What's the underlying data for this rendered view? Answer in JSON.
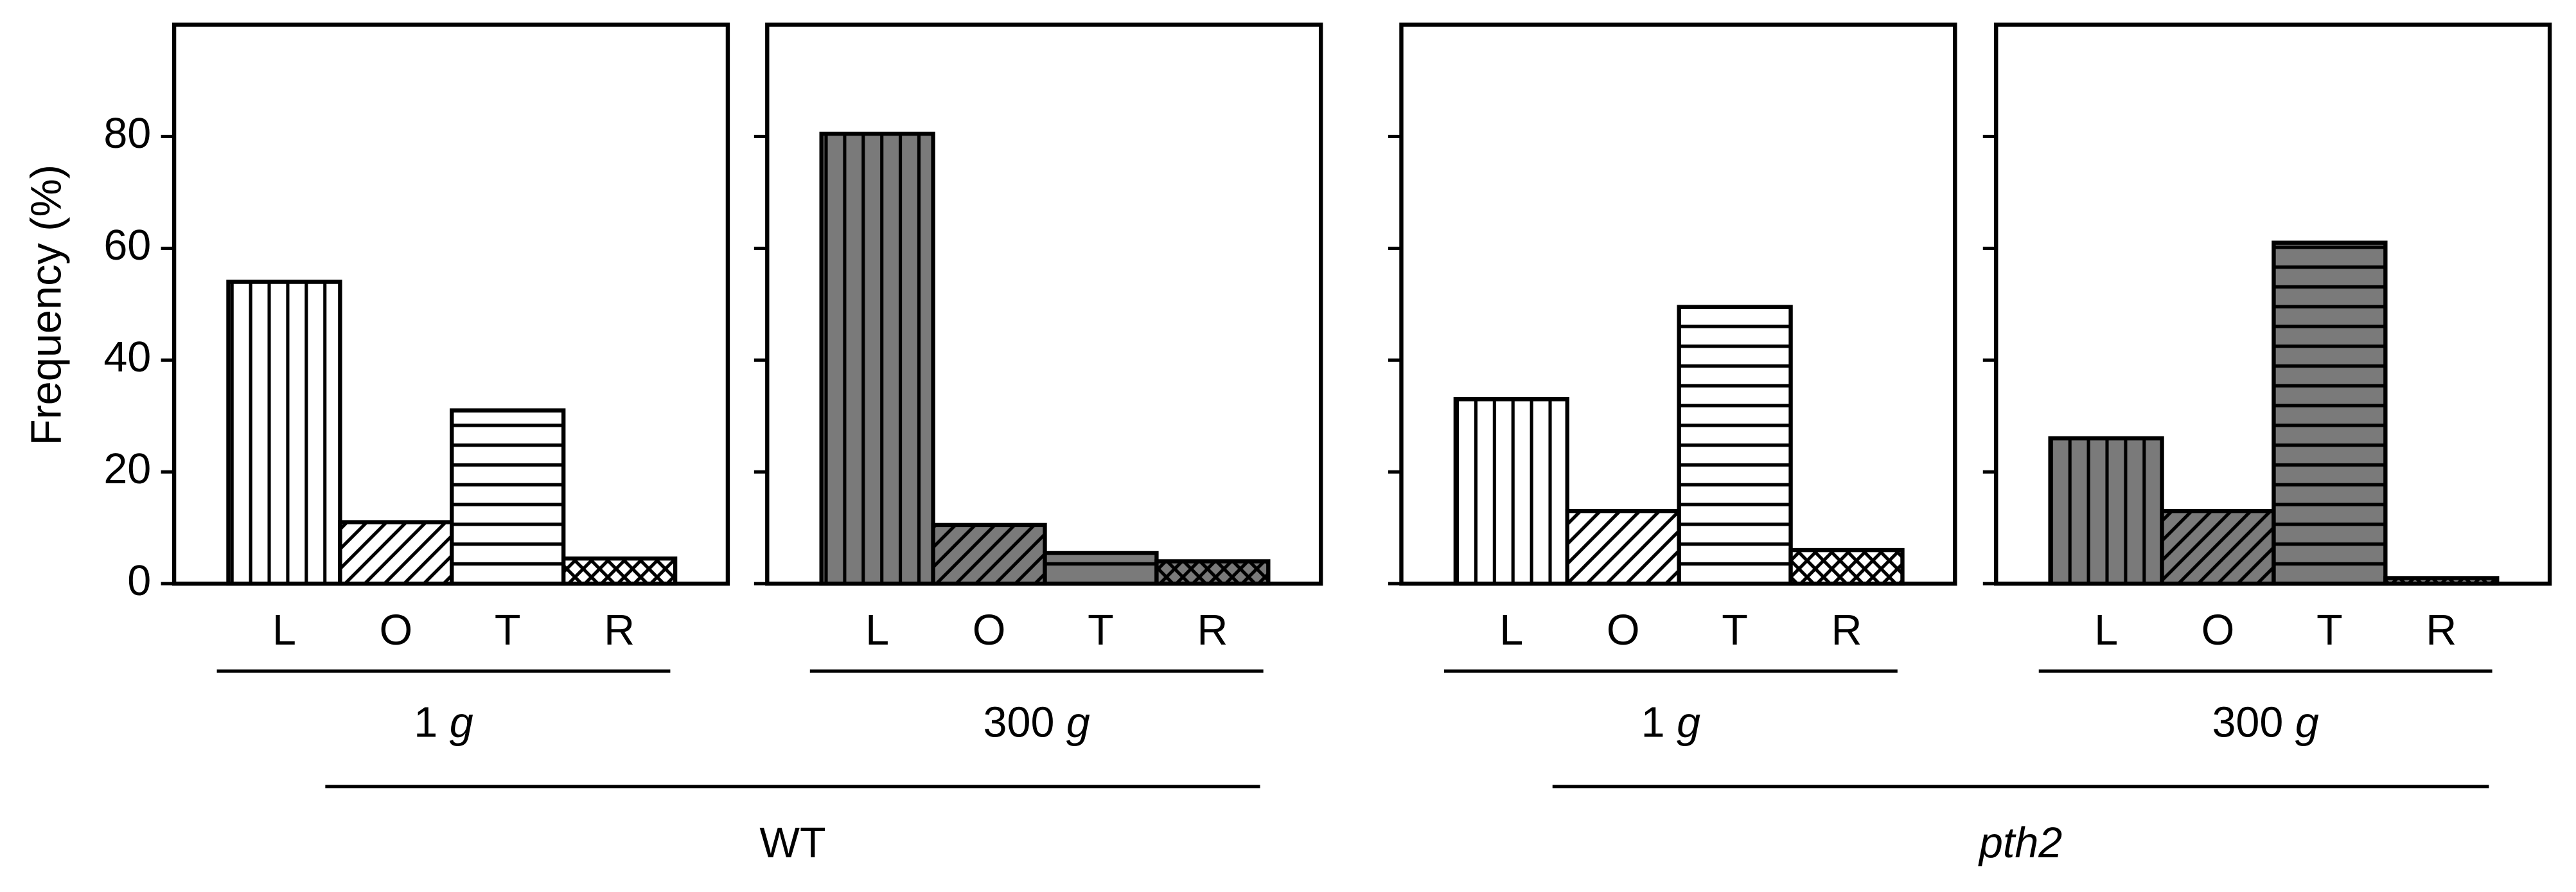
{
  "y_axis_label": "Frequency (%)",
  "groups": [
    "WT",
    "pth2"
  ],
  "chart_data": [
    {
      "type": "bar",
      "title": "1 g",
      "categories": [
        "L",
        "O",
        "T",
        "R"
      ],
      "values": [
        54,
        11,
        31,
        4.5
      ],
      "color": "#ffffff",
      "patterns": [
        "vertical",
        "diagonal",
        "horizontal",
        "crosshatch"
      ],
      "ylim": [
        0,
        100
      ],
      "yticks": [
        0,
        20,
        40,
        60,
        80
      ],
      "show_tick_labels": true,
      "group": 0
    },
    {
      "type": "bar",
      "title": "300 g",
      "categories": [
        "L",
        "O",
        "T",
        "R"
      ],
      "values": [
        80.5,
        10.5,
        5.5,
        4
      ],
      "color": "#7a7a7a",
      "patterns": [
        "vertical",
        "diagonal",
        "horizontal",
        "crosshatch"
      ],
      "ylim": [
        0,
        100
      ],
      "yticks": [
        0,
        20,
        40,
        60,
        80
      ],
      "show_tick_labels": false,
      "group": 0
    },
    {
      "type": "bar",
      "title": "1 g",
      "categories": [
        "L",
        "O",
        "T",
        "R"
      ],
      "values": [
        33,
        13,
        49.5,
        6
      ],
      "color": "#ffffff",
      "patterns": [
        "vertical",
        "diagonal",
        "horizontal",
        "crosshatch"
      ],
      "ylim": [
        0,
        100
      ],
      "yticks": [
        0,
        20,
        40,
        60,
        80
      ],
      "show_tick_labels": false,
      "group": 1
    },
    {
      "type": "bar",
      "title": "300 g",
      "categories": [
        "L",
        "O",
        "T",
        "R"
      ],
      "values": [
        26,
        13,
        61,
        1
      ],
      "color": "#7a7a7a",
      "patterns": [
        "vertical",
        "diagonal",
        "horizontal",
        "crosshatch"
      ],
      "ylim": [
        0,
        100
      ],
      "yticks": [
        0,
        20,
        40,
        60,
        80
      ],
      "show_tick_labels": false,
      "group": 1
    }
  ]
}
